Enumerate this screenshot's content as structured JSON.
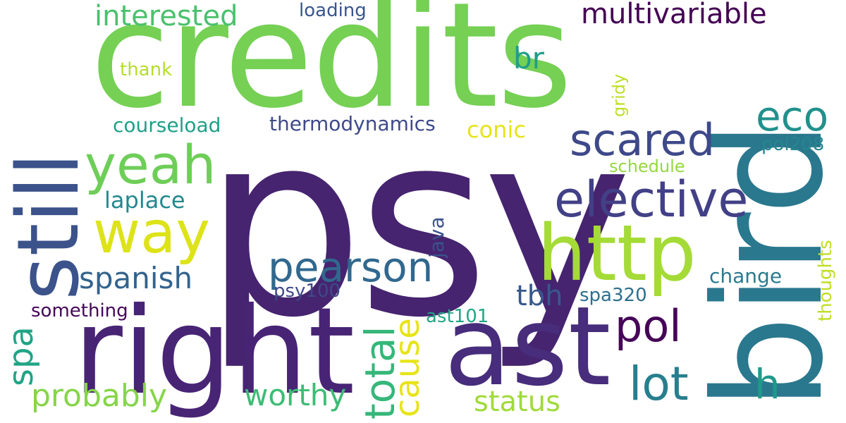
{
  "words": [
    {
      "text": "psy",
      "color": "#46246f"
    },
    {
      "text": "credits",
      "color": "#75d054"
    },
    {
      "text": "bird",
      "color": "#2a788e"
    },
    {
      "text": "still",
      "color": "#3b528b"
    },
    {
      "text": "right",
      "color": "#482475"
    },
    {
      "text": "ast",
      "color": "#472d7b"
    },
    {
      "text": "http",
      "color": "#a5db36"
    },
    {
      "text": "way",
      "color": "#dde318"
    },
    {
      "text": "yeah",
      "color": "#6ece58"
    },
    {
      "text": "elective",
      "color": "#424086"
    },
    {
      "text": "scared",
      "color": "#3e4989"
    },
    {
      "text": "pearson",
      "color": "#31688e"
    },
    {
      "text": "eco",
      "color": "#21918c"
    },
    {
      "text": "interested",
      "color": "#4ac16d"
    },
    {
      "text": "multivariable",
      "color": "#440154"
    },
    {
      "text": "total",
      "color": "#35b779"
    },
    {
      "text": "cause",
      "color": "#e7e419"
    },
    {
      "text": "lot",
      "color": "#277f8e"
    },
    {
      "text": "pol",
      "color": "#450457"
    },
    {
      "text": "h",
      "color": "#1f9a8a"
    },
    {
      "text": "spanish",
      "color": "#33638d"
    },
    {
      "text": "probably",
      "color": "#86d549"
    },
    {
      "text": "worthy",
      "color": "#3dbc74"
    },
    {
      "text": "spa",
      "color": "#20a486"
    },
    {
      "text": "br",
      "color": "#1f9e89"
    },
    {
      "text": "status",
      "color": "#a0da39"
    },
    {
      "text": "tbh",
      "color": "#38588c"
    },
    {
      "text": "laplace",
      "color": "#23898e"
    },
    {
      "text": "thermodynamics",
      "color": "#3e4a89"
    },
    {
      "text": "conic",
      "color": "#e5e419"
    },
    {
      "text": "courseload",
      "color": "#1fa088"
    },
    {
      "text": "loading",
      "color": "#39568c"
    },
    {
      "text": "thank",
      "color": "#b5de2b"
    },
    {
      "text": "something",
      "color": "#450559"
    },
    {
      "text": "psy100",
      "color": "#3e4989"
    },
    {
      "text": "ast101",
      "color": "#21a585"
    },
    {
      "text": "spa320",
      "color": "#2e6e8e"
    },
    {
      "text": "change",
      "color": "#297a8e"
    },
    {
      "text": "thoughts",
      "color": "#c0df25"
    },
    {
      "text": "schedule",
      "color": "#95d840"
    },
    {
      "text": "pol208",
      "color": "#24868e"
    },
    {
      "text": "gridy",
      "color": "#bddf26"
    },
    {
      "text": "java",
      "color": "#3b528b"
    }
  ]
}
